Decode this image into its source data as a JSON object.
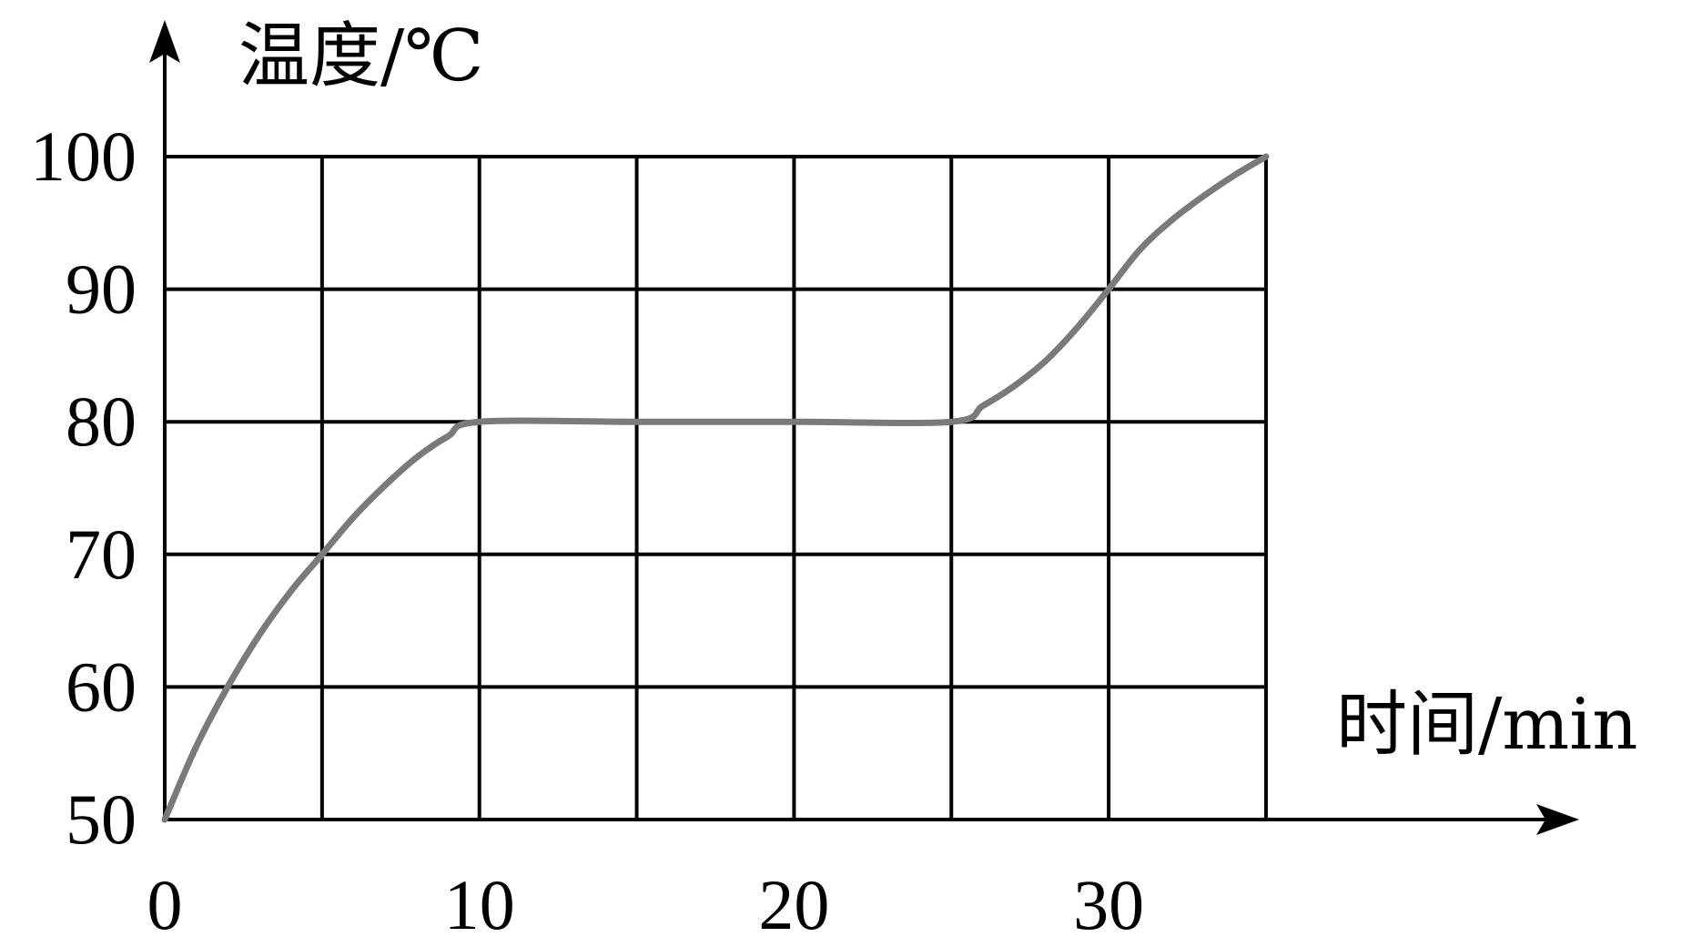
{
  "chart_data": {
    "type": "line",
    "title": "",
    "xlabel": "时间/min",
    "ylabel": "温度/℃",
    "xlim": [
      0,
      35
    ],
    "ylim": [
      50,
      100
    ],
    "x_ticks": [
      0,
      10,
      20,
      30
    ],
    "y_ticks": [
      50,
      60,
      70,
      80,
      90,
      100
    ],
    "x_grid_step": 5,
    "y_grid_step": 10,
    "grid": true,
    "legend": "none",
    "line_color": "#7a7a7a",
    "grid_color": "#000000",
    "series": [
      {
        "x": [
          0,
          1,
          2,
          3,
          4,
          5,
          6,
          7,
          8,
          9,
          10,
          15,
          20,
          25,
          26,
          27,
          28,
          29,
          30,
          31,
          32,
          33,
          34,
          35
        ],
        "values": [
          50,
          55.5,
          60,
          63.9,
          67.2,
          70,
          72.8,
          75.2,
          77.3,
          78.9,
          80,
          80,
          80,
          80,
          81.2,
          82.7,
          84.6,
          87.1,
          90,
          93,
          95.2,
          97,
          98.6,
          100
        ]
      }
    ]
  }
}
